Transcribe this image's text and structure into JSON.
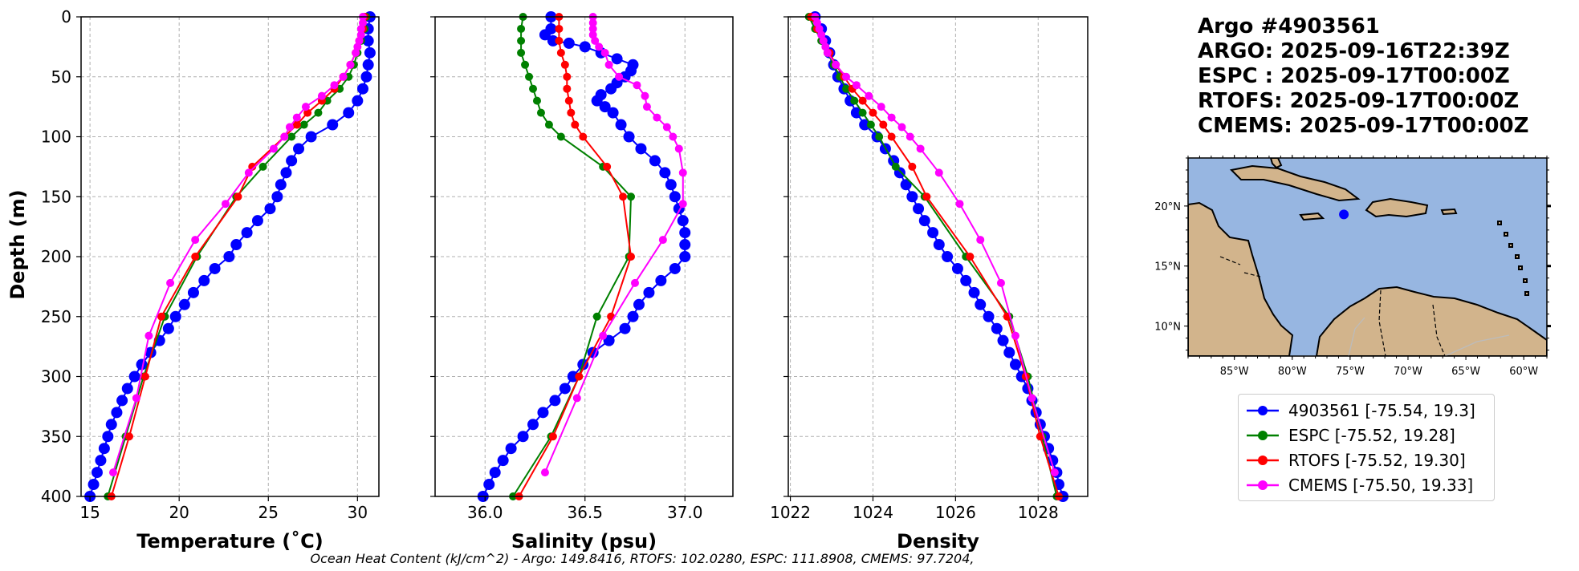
{
  "title": {
    "argo_id": "Argo #4903561",
    "argo_time": "ARGO: 2025-09-16T22:39Z",
    "espc_time": "ESPC : 2025-09-17T00:00Z",
    "rtofs_time": "RTOFS: 2025-09-17T00:00Z",
    "cmems_time": "CMEMS: 2025-09-17T00:00Z"
  },
  "footer": "Ocean Heat Content (kJ/cm^2) - Argo: 149.8416,  RTOFS: 102.0280,  ESPC: 111.8908,  CMEMS: 97.7204,",
  "colors": {
    "argo": "#0000ff",
    "espc": "#008000",
    "rtofs": "#ff0000",
    "cmems": "#ff00ff"
  },
  "legend": [
    {
      "key": "argo",
      "label": "4903561 [-75.54, 19.3]"
    },
    {
      "key": "espc",
      "label": "ESPC [-75.52, 19.28]"
    },
    {
      "key": "rtofs",
      "label": "RTOFS [-75.52, 19.30]"
    },
    {
      "key": "cmems",
      "label": "CMEMS [-75.50, 19.33]"
    }
  ],
  "map": {
    "lon_ticks": [
      "85°W",
      "80°W",
      "75°W",
      "70°W",
      "65°W",
      "60°W"
    ],
    "lat_ticks": [
      "20°N",
      "15°N",
      "10°N"
    ],
    "lon_range": [
      -89,
      -58
    ],
    "lat_range": [
      7.5,
      24
    ],
    "point": {
      "lon": -75.54,
      "lat": 19.3
    },
    "ocean_color": "#97b6e1",
    "land_color": "#d2b48c"
  },
  "chart_data": [
    {
      "type": "line",
      "xlabel": "Temperature (˚C)",
      "ylabel": "Depth (m)",
      "xlim": [
        14.5,
        31.2
      ],
      "ylim": [
        400,
        0
      ],
      "xticks": [
        15,
        20,
        25,
        30
      ],
      "yticks": [
        0,
        50,
        100,
        150,
        200,
        250,
        300,
        350,
        400
      ],
      "series": [
        {
          "key": "argo",
          "name": "4903561",
          "marker": "large",
          "depth": [
            0,
            10,
            20,
            30,
            40,
            50,
            60,
            70,
            80,
            90,
            100,
            110,
            120,
            130,
            140,
            150,
            160,
            170,
            180,
            190,
            200,
            210,
            220,
            230,
            240,
            250,
            260,
            270,
            280,
            290,
            300,
            310,
            320,
            330,
            340,
            350,
            360,
            370,
            380,
            390,
            400
          ],
          "values": [
            30.7,
            30.6,
            30.6,
            30.7,
            30.6,
            30.5,
            30.3,
            30.0,
            29.5,
            28.6,
            27.4,
            26.7,
            26.3,
            26.0,
            25.7,
            25.5,
            25.1,
            24.4,
            23.8,
            23.2,
            22.8,
            22.0,
            21.4,
            20.8,
            20.3,
            19.8,
            19.4,
            18.9,
            18.4,
            17.9,
            17.5,
            17.1,
            16.8,
            16.5,
            16.2,
            16.0,
            15.8,
            15.6,
            15.4,
            15.2,
            15.0
          ]
        },
        {
          "key": "espc",
          "name": "ESPC",
          "depth": [
            0,
            10,
            20,
            30,
            40,
            50,
            60,
            70,
            80,
            90,
            100,
            125,
            150,
            200,
            250,
            300,
            350,
            400
          ],
          "values": [
            30.5,
            30.4,
            30.2,
            30.0,
            29.8,
            29.5,
            29.0,
            28.3,
            27.8,
            27.0,
            26.3,
            24.7,
            23.2,
            21.0,
            19.2,
            18.0,
            17.0,
            16.0
          ]
        },
        {
          "key": "rtofs",
          "name": "RTOFS",
          "depth": [
            0,
            10,
            20,
            30,
            40,
            50,
            60,
            70,
            80,
            90,
            100,
            125,
            150,
            200,
            250,
            300,
            350,
            400
          ],
          "values": [
            30.4,
            30.3,
            30.1,
            29.9,
            29.6,
            29.2,
            28.7,
            28.0,
            27.2,
            26.6,
            25.9,
            24.1,
            23.3,
            20.9,
            19.0,
            18.1,
            17.2,
            16.2
          ]
        },
        {
          "key": "cmems",
          "name": "CMEMS",
          "depth": [
            0,
            5,
            10,
            15,
            20,
            25,
            30,
            40,
            50,
            57,
            66,
            75,
            84,
            92,
            100,
            110,
            130,
            156,
            186,
            222,
            266,
            318,
            380
          ],
          "values": [
            30.3,
            30.3,
            30.2,
            30.2,
            30.1,
            30.0,
            29.9,
            29.6,
            29.2,
            28.7,
            28.0,
            27.1,
            26.6,
            26.2,
            25.9,
            25.3,
            23.9,
            22.6,
            20.9,
            19.5,
            18.3,
            17.6,
            16.3
          ]
        }
      ]
    },
    {
      "type": "line",
      "xlabel": "Salinity (psu)",
      "ylabel": "Depth (m)",
      "xlim": [
        35.75,
        37.24
      ],
      "ylim": [
        400,
        0
      ],
      "xticks": [
        36.0,
        36.5,
        37.0
      ],
      "tick_labels": [
        "36.0",
        "36.5",
        "37.0"
      ],
      "series": [
        {
          "key": "argo",
          "name": "4903561",
          "marker": "large",
          "depth": [
            0,
            10,
            15,
            20,
            22,
            25,
            30,
            35,
            40,
            45,
            50,
            55,
            60,
            65,
            70,
            75,
            80,
            90,
            100,
            110,
            120,
            130,
            140,
            150,
            160,
            170,
            180,
            190,
            200,
            210,
            220,
            230,
            240,
            250,
            260,
            270,
            280,
            290,
            300,
            310,
            320,
            330,
            340,
            350,
            360,
            370,
            380,
            390,
            400
          ],
          "values": [
            36.33,
            36.33,
            36.3,
            36.34,
            36.42,
            36.5,
            36.58,
            36.66,
            36.74,
            36.73,
            36.7,
            36.66,
            36.63,
            36.58,
            36.56,
            36.6,
            36.64,
            36.68,
            36.72,
            36.78,
            36.85,
            36.9,
            36.93,
            36.95,
            36.97,
            36.99,
            37.0,
            37.0,
            37.0,
            36.95,
            36.88,
            36.82,
            36.77,
            36.74,
            36.7,
            36.62,
            36.54,
            36.49,
            36.44,
            36.4,
            36.35,
            36.29,
            36.24,
            36.19,
            36.13,
            36.09,
            36.05,
            36.02,
            35.99
          ]
        },
        {
          "key": "espc",
          "name": "ESPC",
          "depth": [
            0,
            10,
            20,
            30,
            40,
            50,
            60,
            70,
            80,
            90,
            100,
            125,
            150,
            200,
            250,
            300,
            350,
            400
          ],
          "values": [
            36.19,
            36.18,
            36.18,
            36.18,
            36.2,
            36.22,
            36.24,
            36.26,
            36.28,
            36.32,
            36.38,
            36.59,
            36.73,
            36.72,
            36.56,
            36.47,
            36.33,
            36.14
          ]
        },
        {
          "key": "rtofs",
          "name": "RTOFS",
          "depth": [
            0,
            10,
            20,
            30,
            40,
            50,
            60,
            70,
            80,
            90,
            100,
            125,
            150,
            200,
            250,
            300,
            350,
            400
          ],
          "values": [
            36.37,
            36.37,
            36.37,
            36.38,
            36.4,
            36.41,
            36.41,
            36.42,
            36.43,
            36.45,
            36.49,
            36.61,
            36.69,
            36.73,
            36.63,
            36.47,
            36.34,
            36.17
          ]
        },
        {
          "key": "cmems",
          "name": "CMEMS",
          "depth": [
            0,
            5,
            10,
            15,
            20,
            25,
            30,
            40,
            50,
            57,
            66,
            75,
            84,
            92,
            100,
            110,
            130,
            156,
            186,
            222,
            266,
            318,
            380
          ],
          "values": [
            36.54,
            36.54,
            36.54,
            36.54,
            36.55,
            36.57,
            36.6,
            36.62,
            36.67,
            36.76,
            36.8,
            36.81,
            36.86,
            36.91,
            36.94,
            36.97,
            36.99,
            36.99,
            36.89,
            36.75,
            36.59,
            36.46,
            36.3
          ]
        }
      ]
    },
    {
      "type": "line",
      "xlabel": "Density",
      "ylabel": "Depth (m)",
      "xlim": [
        1021.95,
        1029.2
      ],
      "ylim": [
        400,
        0
      ],
      "xticks": [
        1022,
        1024,
        1026,
        1028
      ],
      "series": [
        {
          "key": "argo",
          "name": "4903561",
          "marker": "large",
          "depth": [
            0,
            10,
            20,
            30,
            40,
            50,
            60,
            70,
            80,
            90,
            100,
            110,
            120,
            130,
            140,
            150,
            160,
            170,
            180,
            190,
            200,
            210,
            220,
            230,
            240,
            250,
            260,
            270,
            280,
            290,
            300,
            310,
            320,
            330,
            340,
            350,
            360,
            370,
            380,
            390,
            400
          ],
          "values": [
            1022.6,
            1022.75,
            1022.85,
            1022.95,
            1023.05,
            1023.15,
            1023.3,
            1023.45,
            1023.6,
            1023.8,
            1024.1,
            1024.3,
            1024.5,
            1024.65,
            1024.8,
            1024.95,
            1025.1,
            1025.25,
            1025.45,
            1025.6,
            1025.8,
            1026.05,
            1026.25,
            1026.45,
            1026.6,
            1026.8,
            1027.0,
            1027.15,
            1027.3,
            1027.45,
            1027.6,
            1027.75,
            1027.85,
            1027.95,
            1028.05,
            1028.15,
            1028.25,
            1028.35,
            1028.45,
            1028.5,
            1028.6
          ]
        },
        {
          "key": "espc",
          "name": "ESPC",
          "depth": [
            0,
            10,
            20,
            30,
            40,
            50,
            60,
            70,
            80,
            90,
            100,
            125,
            150,
            200,
            250,
            300,
            350,
            400
          ],
          "values": [
            1022.45,
            1022.6,
            1022.75,
            1022.9,
            1023.05,
            1023.2,
            1023.35,
            1023.55,
            1023.75,
            1023.95,
            1024.15,
            1024.55,
            1025.25,
            1026.25,
            1027.3,
            1027.75,
            1028.1,
            1028.45
          ]
        },
        {
          "key": "rtofs",
          "name": "RTOFS",
          "depth": [
            0,
            10,
            20,
            30,
            40,
            50,
            60,
            70,
            80,
            90,
            100,
            125,
            150,
            200,
            250,
            300,
            350,
            400
          ],
          "values": [
            1022.5,
            1022.65,
            1022.8,
            1022.95,
            1023.1,
            1023.3,
            1023.5,
            1023.75,
            1024.0,
            1024.25,
            1024.45,
            1024.95,
            1025.3,
            1026.35,
            1027.25,
            1027.7,
            1028.05,
            1028.5
          ]
        },
        {
          "key": "cmems",
          "name": "CMEMS",
          "depth": [
            0,
            5,
            10,
            15,
            20,
            25,
            30,
            40,
            50,
            57,
            66,
            75,
            84,
            92,
            100,
            110,
            130,
            156,
            186,
            222,
            266,
            318,
            380
          ],
          "values": [
            1022.6,
            1022.65,
            1022.7,
            1022.75,
            1022.8,
            1022.85,
            1022.9,
            1023.1,
            1023.35,
            1023.6,
            1023.9,
            1024.2,
            1024.45,
            1024.7,
            1024.9,
            1025.15,
            1025.6,
            1026.1,
            1026.6,
            1027.1,
            1027.45,
            1027.85,
            1028.4
          ]
        }
      ]
    }
  ]
}
